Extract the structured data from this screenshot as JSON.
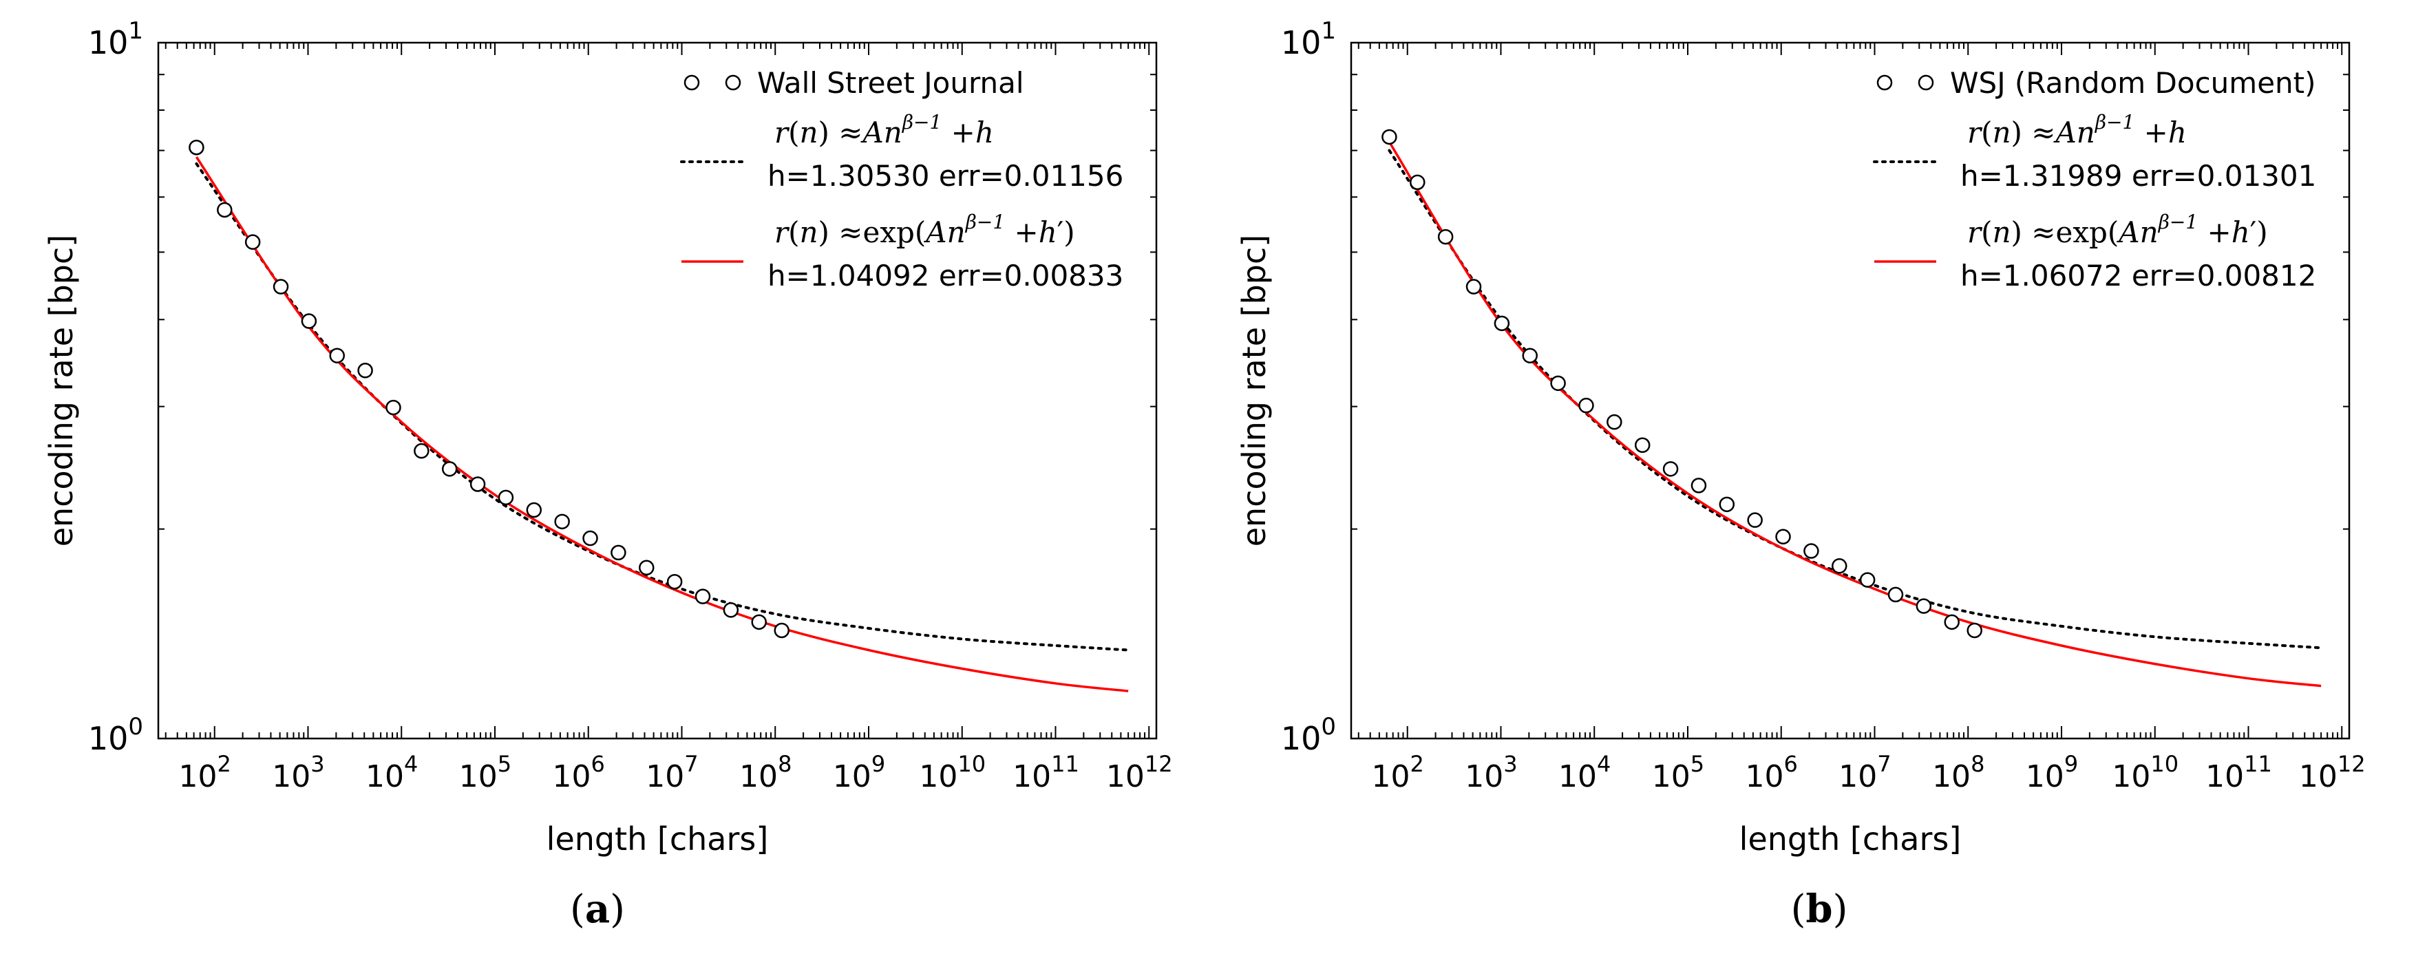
{
  "figure": {
    "panels": [
      {
        "caption_letter": "a"
      },
      {
        "caption_letter": "b"
      }
    ]
  },
  "chart_data": [
    {
      "type": "scatter",
      "title": "",
      "xlabel": "length [chars]",
      "ylabel": "encoding rate [bpc]",
      "xscale": "log",
      "yscale": "log",
      "xlim": [
        25,
        1200000000000.0
      ],
      "ylim": [
        1,
        10
      ],
      "xticks": [
        {
          "value": 100.0,
          "base": "10",
          "exp": "2"
        },
        {
          "value": 1000.0,
          "base": "10",
          "exp": "3"
        },
        {
          "value": 10000.0,
          "base": "10",
          "exp": "4"
        },
        {
          "value": 100000.0,
          "base": "10",
          "exp": "5"
        },
        {
          "value": 1000000.0,
          "base": "10",
          "exp": "6"
        },
        {
          "value": 10000000.0,
          "base": "10",
          "exp": "7"
        },
        {
          "value": 100000000.0,
          "base": "10",
          "exp": "8"
        },
        {
          "value": 1000000000.0,
          "base": "10",
          "exp": "9"
        },
        {
          "value": 10000000000.0,
          "base": "10",
          "exp": "10"
        },
        {
          "value": 100000000000.0,
          "base": "10",
          "exp": "11"
        },
        {
          "value": 1000000000000.0,
          "base": "10",
          "exp": "12"
        }
      ],
      "yticks": [
        {
          "value": 1,
          "base": "10",
          "exp": "0"
        },
        {
          "value": 10,
          "base": "10",
          "exp": "1"
        }
      ],
      "legend_position": "top-right",
      "series": [
        {
          "name": "Wall Street Journal",
          "kind": "markers",
          "color": "#000000",
          "x": [
            64,
            128,
            256,
            512,
            1024,
            2048,
            4096,
            8192,
            16384,
            32768,
            65536,
            131072,
            262144,
            524288,
            1048576,
            2097152,
            4194304,
            8388608,
            16777216,
            33554432,
            67108864,
            117440512
          ],
          "y": [
            7.07,
            5.75,
            5.17,
            4.46,
            3.98,
            3.55,
            3.38,
            2.99,
            2.59,
            2.44,
            2.32,
            2.22,
            2.13,
            2.05,
            1.94,
            1.85,
            1.76,
            1.68,
            1.6,
            1.53,
            1.47,
            1.43
          ]
        },
        {
          "name": "r(n)≈An^(β−1)+h",
          "kind": "dotted",
          "color": "#000000",
          "stats": "h=1.30530 err=0.01156",
          "x": [
            64,
            1000.0,
            10000.0,
            100000.0,
            1000000.0,
            10000000.0,
            100000000.0,
            1000000000.0,
            10000000000.0,
            100000000000.0,
            600000000000.0
          ],
          "y": [
            6.7,
            3.95,
            2.84,
            2.21,
            1.86,
            1.64,
            1.51,
            1.44,
            1.39,
            1.36,
            1.34
          ]
        },
        {
          "name": "r(n)≈exp(An^(β−1)+h′)",
          "kind": "line",
          "color": "#ff0000",
          "stats": "h=1.04092 err=0.00833",
          "x": [
            64,
            1000.0,
            10000.0,
            100000.0,
            1000000.0,
            10000000.0,
            100000000.0,
            1000000000.0,
            10000000000.0,
            100000000000.0,
            600000000000.0
          ],
          "y": [
            6.85,
            3.92,
            2.85,
            2.24,
            1.87,
            1.62,
            1.45,
            1.34,
            1.26,
            1.2,
            1.17
          ]
        }
      ]
    },
    {
      "type": "scatter",
      "title": "",
      "xlabel": "length [chars]",
      "ylabel": "encoding rate [bpc]",
      "xscale": "log",
      "yscale": "log",
      "xlim": [
        25,
        1200000000000.0
      ],
      "ylim": [
        1,
        10
      ],
      "xticks": [
        {
          "value": 100.0,
          "base": "10",
          "exp": "2"
        },
        {
          "value": 1000.0,
          "base": "10",
          "exp": "3"
        },
        {
          "value": 10000.0,
          "base": "10",
          "exp": "4"
        },
        {
          "value": 100000.0,
          "base": "10",
          "exp": "5"
        },
        {
          "value": 1000000.0,
          "base": "10",
          "exp": "6"
        },
        {
          "value": 10000000.0,
          "base": "10",
          "exp": "7"
        },
        {
          "value": 100000000.0,
          "base": "10",
          "exp": "8"
        },
        {
          "value": 1000000000.0,
          "base": "10",
          "exp": "9"
        },
        {
          "value": 10000000000.0,
          "base": "10",
          "exp": "10"
        },
        {
          "value": 100000000000.0,
          "base": "10",
          "exp": "11"
        },
        {
          "value": 1000000000000.0,
          "base": "10",
          "exp": "12"
        }
      ],
      "yticks": [
        {
          "value": 1,
          "base": "10",
          "exp": "0"
        },
        {
          "value": 10,
          "base": "10",
          "exp": "1"
        }
      ],
      "legend_position": "top-right",
      "series": [
        {
          "name": "WSJ (Random Document)",
          "kind": "markers",
          "color": "#000000",
          "x": [
            64,
            128,
            256,
            512,
            1024,
            2048,
            4096,
            8192,
            16384,
            32768,
            65536,
            131072,
            262144,
            524288,
            1048576,
            2097152,
            4194304,
            8388608,
            16777216,
            33554432,
            67108864,
            117440512
          ],
          "y": [
            7.32,
            6.3,
            5.26,
            4.46,
            3.95,
            3.55,
            3.24,
            3.01,
            2.85,
            2.64,
            2.44,
            2.31,
            2.17,
            2.06,
            1.95,
            1.86,
            1.77,
            1.69,
            1.61,
            1.55,
            1.47,
            1.43
          ]
        },
        {
          "name": "r(n)≈An^(β−1)+h",
          "kind": "dotted",
          "color": "#000000",
          "stats": "h=1.31989 err=0.01301",
          "x": [
            64,
            1000.0,
            10000.0,
            100000.0,
            1000000.0,
            10000000.0,
            100000000.0,
            1000000000.0,
            10000000000.0,
            100000000000.0,
            600000000000.0
          ],
          "y": [
            7.0,
            4.0,
            2.86,
            2.23,
            1.88,
            1.66,
            1.52,
            1.45,
            1.4,
            1.37,
            1.35
          ]
        },
        {
          "name": "r(n)≈exp(An^(β−1)+h′)",
          "kind": "line",
          "color": "#ff0000",
          "stats": "h=1.06072 err=0.00812",
          "x": [
            64,
            1000.0,
            10000.0,
            100000.0,
            1000000.0,
            10000000.0,
            100000000.0,
            1000000000.0,
            10000000000.0,
            100000000000.0,
            600000000000.0
          ],
          "y": [
            7.2,
            3.95,
            2.87,
            2.25,
            1.88,
            1.64,
            1.47,
            1.36,
            1.28,
            1.22,
            1.19
          ]
        }
      ]
    }
  ]
}
